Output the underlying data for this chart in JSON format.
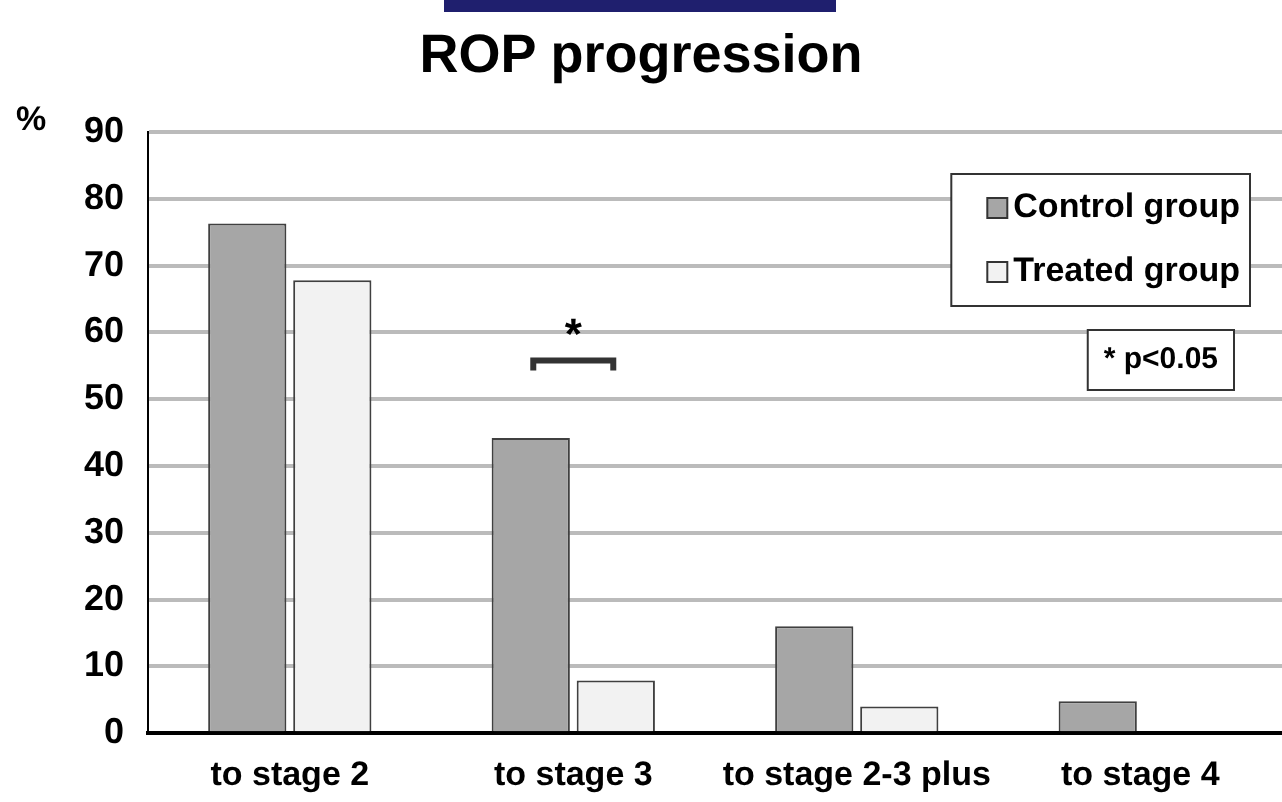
{
  "chart_data": {
    "type": "bar",
    "title": "ROP progression",
    "ylabel": "%",
    "categories": [
      "to stage 2",
      "to stage 3",
      "to stage 2-3 plus",
      "to stage 4"
    ],
    "series": [
      {
        "name": "Control group",
        "color": "#a6a6a6",
        "values": [
          76.3,
          44.2,
          16,
          4.8
        ]
      },
      {
        "name": "Treated group",
        "color": "#f2f2f2",
        "values": [
          67.8,
          7.9,
          4,
          0
        ]
      }
    ],
    "ylim": [
      0,
      90
    ],
    "yticks": [
      0,
      10,
      20,
      30,
      40,
      50,
      60,
      70,
      80,
      90
    ],
    "grid": "y",
    "legend": "top right",
    "annotations": [
      "*",
      "* p<0.05"
    ]
  }
}
